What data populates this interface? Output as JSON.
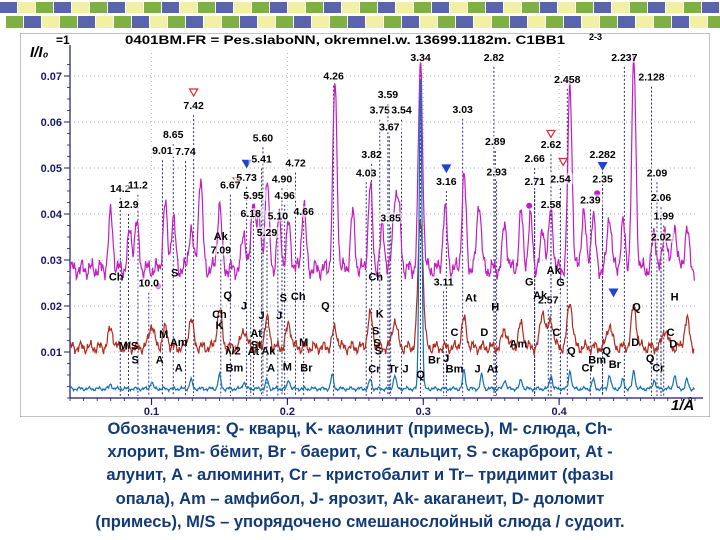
{
  "chart_data": {
    "type": "line",
    "title": "0401BM.FR = Pes.slaboNN, okremnel.w. 13699.1182m. C1BB1",
    "title_prefix": "=1",
    "superscript": "2-3",
    "ylabel": "I/I₀",
    "xlabel": "1/Å",
    "xlim": [
      0.04,
      0.5
    ],
    "ylim": [
      0,
      0.075
    ],
    "x_ticks": [
      {
        "v": 0.1,
        "label": "0.1"
      },
      {
        "v": 0.2,
        "label": "0.2"
      },
      {
        "v": 0.3,
        "label": "0.3"
      },
      {
        "v": 0.4,
        "label": "0.4"
      }
    ],
    "y_ticks": [
      {
        "v": 0.01,
        "label": "0.01"
      },
      {
        "v": 0.02,
        "label": "0.02"
      },
      {
        "v": 0.03,
        "label": "0.03"
      },
      {
        "v": 0.04,
        "label": "0.04"
      },
      {
        "v": 0.05,
        "label": "0.05"
      },
      {
        "v": 0.06,
        "label": "0.06"
      },
      {
        "v": 0.07,
        "label": "0.07"
      }
    ],
    "series": [
      {
        "color": "#c020c0",
        "offset": 0.028,
        "peaks": [
          [
            0.07,
            0.012
          ],
          [
            0.084,
            0.008
          ],
          [
            0.089,
            0.01
          ],
          [
            0.11,
            0.014
          ],
          [
            0.116,
            0.011
          ],
          [
            0.129,
            0.009
          ],
          [
            0.136,
            0.02
          ],
          [
            0.15,
            0.014
          ],
          [
            0.168,
            0.008
          ],
          [
            0.175,
            0.015
          ],
          [
            0.179,
            0.01
          ],
          [
            0.185,
            0.019
          ],
          [
            0.194,
            0.011
          ],
          [
            0.201,
            0.01
          ],
          [
            0.212,
            0.014
          ],
          [
            0.235,
            0.04
          ],
          [
            0.248,
            0.012
          ],
          [
            0.261,
            0.018
          ],
          [
            0.27,
            0.009
          ],
          [
            0.279,
            0.014
          ],
          [
            0.282,
            0.012
          ],
          [
            0.298,
            0.045
          ],
          [
            0.316,
            0.013
          ],
          [
            0.33,
            0.02
          ],
          [
            0.341,
            0.015
          ],
          [
            0.36,
            0.01
          ],
          [
            0.372,
            0.012
          ],
          [
            0.379,
            0.011
          ],
          [
            0.388,
            0.009
          ],
          [
            0.394,
            0.013
          ],
          [
            0.408,
            0.04
          ],
          [
            0.418,
            0.013
          ],
          [
            0.425,
            0.012
          ],
          [
            0.437,
            0.012
          ],
          [
            0.447,
            0.01
          ],
          [
            0.455,
            0.045
          ],
          [
            0.47,
            0.008
          ],
          [
            0.478,
            0.009
          ],
          [
            0.485,
            0.01
          ],
          [
            0.494,
            0.009
          ]
        ]
      },
      {
        "color": "#b02c20",
        "offset": 0.011,
        "peaks": [
          [
            0.07,
            0.004
          ],
          [
            0.1,
            0.005
          ],
          [
            0.11,
            0.004
          ],
          [
            0.129,
            0.006
          ],
          [
            0.15,
            0.008
          ],
          [
            0.168,
            0.004
          ],
          [
            0.185,
            0.006
          ],
          [
            0.201,
            0.005
          ],
          [
            0.235,
            0.004
          ],
          [
            0.261,
            0.007
          ],
          [
            0.279,
            0.006
          ],
          [
            0.298,
            0.028
          ],
          [
            0.33,
            0.006
          ],
          [
            0.36,
            0.004
          ],
          [
            0.372,
            0.005
          ],
          [
            0.388,
            0.008
          ],
          [
            0.394,
            0.006
          ],
          [
            0.408,
            0.01
          ],
          [
            0.437,
            0.005
          ],
          [
            0.455,
            0.009
          ],
          [
            0.478,
            0.004
          ],
          [
            0.494,
            0.006
          ]
        ]
      },
      {
        "color": "#1470b8",
        "offset": 0.002,
        "peaks": [
          [
            0.07,
            0.001
          ],
          [
            0.1,
            0.0015
          ],
          [
            0.129,
            0.002
          ],
          [
            0.15,
            0.003
          ],
          [
            0.168,
            0.0015
          ],
          [
            0.185,
            0.002
          ],
          [
            0.201,
            0.002
          ],
          [
            0.233,
            0.003
          ],
          [
            0.261,
            0.002
          ],
          [
            0.279,
            0.003
          ],
          [
            0.298,
            0.068
          ],
          [
            0.33,
            0.004
          ],
          [
            0.343,
            0.003
          ],
          [
            0.36,
            0.002
          ],
          [
            0.372,
            0.002
          ],
          [
            0.394,
            0.003
          ],
          [
            0.408,
            0.004
          ],
          [
            0.425,
            0.002
          ],
          [
            0.437,
            0.003
          ],
          [
            0.447,
            0.002
          ],
          [
            0.455,
            0.004
          ],
          [
            0.47,
            0.002
          ],
          [
            0.485,
            0.003
          ],
          [
            0.494,
            0.002
          ]
        ]
      }
    ],
    "dspacing_labels": [
      {
        "x": 0.298,
        "y": 0.0733,
        "t": "3.34"
      },
      {
        "x": 0.352,
        "y": 0.0733,
        "t": "2.82"
      },
      {
        "x": 0.448,
        "y": 0.0733,
        "t": "2.237"
      },
      {
        "x": 0.234,
        "y": 0.0692,
        "t": "4.26"
      },
      {
        "x": 0.406,
        "y": 0.0685,
        "t": "2.458"
      },
      {
        "x": 0.468,
        "y": 0.069,
        "t": "2.128"
      },
      {
        "x": 0.274,
        "y": 0.0652,
        "t": "3.59"
      },
      {
        "x": 0.131,
        "y": 0.0628,
        "t": "7.42"
      },
      {
        "x": 0.268,
        "y": 0.0618,
        "t": "3.75"
      },
      {
        "x": 0.284,
        "y": 0.0618,
        "t": "3.54"
      },
      {
        "x": 0.329,
        "y": 0.062,
        "t": "3.03"
      },
      {
        "x": 0.275,
        "y": 0.0582,
        "t": "3.67"
      },
      {
        "x": 0.116,
        "y": 0.0565,
        "t": "8.65"
      },
      {
        "x": 0.182,
        "y": 0.0558,
        "t": "5.60"
      },
      {
        "x": 0.353,
        "y": 0.055,
        "t": "2.89"
      },
      {
        "x": 0.394,
        "y": 0.0543,
        "t": "2.62"
      },
      {
        "x": 0.108,
        "y": 0.053,
        "t": "9.01"
      },
      {
        "x": 0.125,
        "y": 0.0528,
        "t": "7.74"
      },
      {
        "x": 0.262,
        "y": 0.0522,
        "t": "3.82"
      },
      {
        "x": 0.432,
        "y": 0.0522,
        "t": "2.282"
      },
      {
        "x": 0.181,
        "y": 0.0512,
        "t": "5.41"
      },
      {
        "x": 0.206,
        "y": 0.0503,
        "t": "4.72"
      },
      {
        "x": 0.382,
        "y": 0.0513,
        "t": "2.66"
      },
      {
        "x": 0.17,
        "y": 0.0472,
        "t": "5.73"
      },
      {
        "x": 0.196,
        "y": 0.0469,
        "t": "4.90"
      },
      {
        "x": 0.258,
        "y": 0.0482,
        "t": "4.03"
      },
      {
        "x": 0.354,
        "y": 0.0484,
        "t": "2.93"
      },
      {
        "x": 0.317,
        "y": 0.0463,
        "t": "3.16"
      },
      {
        "x": 0.382,
        "y": 0.0463,
        "t": "2.71"
      },
      {
        "x": 0.401,
        "y": 0.0469,
        "t": "2.54"
      },
      {
        "x": 0.432,
        "y": 0.0468,
        "t": "2.35"
      },
      {
        "x": 0.472,
        "y": 0.0482,
        "t": "2.09"
      },
      {
        "x": 0.077,
        "y": 0.0448,
        "t": "14.2"
      },
      {
        "x": 0.09,
        "y": 0.0455,
        "t": "11.2"
      },
      {
        "x": 0.158,
        "y": 0.0455,
        "t": "6.67"
      },
      {
        "x": 0.175,
        "y": 0.0433,
        "t": "5.95"
      },
      {
        "x": 0.198,
        "y": 0.0433,
        "t": "4.96"
      },
      {
        "x": 0.394,
        "y": 0.0413,
        "t": "2.58"
      },
      {
        "x": 0.423,
        "y": 0.0423,
        "t": "2.39"
      },
      {
        "x": 0.475,
        "y": 0.0428,
        "t": "2.06"
      },
      {
        "x": 0.083,
        "y": 0.0413,
        "t": "12.9"
      },
      {
        "x": 0.173,
        "y": 0.0393,
        "t": "6.18"
      },
      {
        "x": 0.193,
        "y": 0.0388,
        "t": "5.10"
      },
      {
        "x": 0.212,
        "y": 0.0398,
        "t": "4.66"
      },
      {
        "x": 0.276,
        "y": 0.0384,
        "t": "3.85"
      },
      {
        "x": 0.477,
        "y": 0.0388,
        "t": "1.99"
      },
      {
        "x": 0.185,
        "y": 0.0352,
        "t": "5.29"
      },
      {
        "x": 0.475,
        "y": 0.0342,
        "t": "2.02"
      },
      {
        "x": 0.151,
        "y": 0.0314,
        "t": "7.09"
      },
      {
        "x": 0.098,
        "y": 0.0242,
        "t": "10.0"
      },
      {
        "x": 0.315,
        "y": 0.0245,
        "t": "3.11"
      },
      {
        "x": 0.392,
        "y": 0.0205,
        "t": "2.57"
      }
    ],
    "phase_labels": [
      {
        "x": 0.151,
        "y": 0.0344,
        "t": "Ak"
      },
      {
        "x": 0.074,
        "y": 0.0255,
        "t": "Ch"
      },
      {
        "x": 0.117,
        "y": 0.0264,
        "t": "S"
      },
      {
        "x": 0.265,
        "y": 0.0255,
        "t": "Ch"
      },
      {
        "x": 0.396,
        "y": 0.027,
        "t": "Ak"
      },
      {
        "x": 0.378,
        "y": 0.0245,
        "t": "G"
      },
      {
        "x": 0.401,
        "y": 0.0244,
        "t": "G"
      },
      {
        "x": 0.156,
        "y": 0.0215,
        "t": "Q"
      },
      {
        "x": 0.197,
        "y": 0.021,
        "t": "S"
      },
      {
        "x": 0.208,
        "y": 0.0213,
        "t": "Ch"
      },
      {
        "x": 0.335,
        "y": 0.021,
        "t": "At"
      },
      {
        "x": 0.386,
        "y": 0.0215,
        "t": "Ak"
      },
      {
        "x": 0.485,
        "y": 0.0212,
        "t": "H"
      },
      {
        "x": 0.168,
        "y": 0.0192,
        "t": "J"
      },
      {
        "x": 0.228,
        "y": 0.0192,
        "t": "Q"
      },
      {
        "x": 0.353,
        "y": 0.019,
        "t": "H"
      },
      {
        "x": 0.457,
        "y": 0.019,
        "t": "Q"
      },
      {
        "x": 0.15,
        "y": 0.0174,
        "t": "Ch"
      },
      {
        "x": 0.181,
        "y": 0.0172,
        "t": "J"
      },
      {
        "x": 0.194,
        "y": 0.0172,
        "t": "J"
      },
      {
        "x": 0.268,
        "y": 0.0175,
        "t": "K"
      },
      {
        "x": 0.15,
        "y": 0.015,
        "t": "K"
      },
      {
        "x": 0.323,
        "y": 0.0135,
        "t": "C"
      },
      {
        "x": 0.345,
        "y": 0.0135,
        "t": "D"
      },
      {
        "x": 0.109,
        "y": 0.013,
        "t": "M"
      },
      {
        "x": 0.177,
        "y": 0.0133,
        "t": "At"
      },
      {
        "x": 0.265,
        "y": 0.0138,
        "t": "S"
      },
      {
        "x": 0.398,
        "y": 0.0135,
        "t": "C"
      },
      {
        "x": 0.482,
        "y": 0.0135,
        "t": "C"
      },
      {
        "x": 0.083,
        "y": 0.0105,
        "t": "M/S"
      },
      {
        "x": 0.12,
        "y": 0.0113,
        "t": "Am"
      },
      {
        "x": 0.177,
        "y": 0.0108,
        "t": "St"
      },
      {
        "x": 0.212,
        "y": 0.0113,
        "t": "M"
      },
      {
        "x": 0.266,
        "y": 0.0112,
        "t": "S"
      },
      {
        "x": 0.37,
        "y": 0.011,
        "t": "Am"
      },
      {
        "x": 0.456,
        "y": 0.0113,
        "t": "D"
      },
      {
        "x": 0.484,
        "y": 0.011,
        "t": "D"
      },
      {
        "x": 0.16,
        "y": 0.0095,
        "t": "λ/2"
      },
      {
        "x": 0.186,
        "y": 0.0095,
        "t": "Ak"
      },
      {
        "x": 0.267,
        "y": 0.0095,
        "t": "S"
      },
      {
        "x": 0.409,
        "y": 0.0095,
        "t": "Q"
      },
      {
        "x": 0.435,
        "y": 0.0095,
        "t": "Q"
      },
      {
        "x": 0.175,
        "y": 0.0093,
        "t": "At"
      },
      {
        "x": 0.088,
        "y": 0.0075,
        "t": "S"
      },
      {
        "x": 0.106,
        "y": 0.0075,
        "t": "A"
      },
      {
        "x": 0.308,
        "y": 0.0075,
        "t": "Br"
      },
      {
        "x": 0.317,
        "y": 0.0078,
        "t": "J"
      },
      {
        "x": 0.428,
        "y": 0.0075,
        "t": "Bm"
      },
      {
        "x": 0.467,
        "y": 0.0078,
        "t": "Q"
      },
      {
        "x": 0.12,
        "y": 0.0058,
        "t": "A"
      },
      {
        "x": 0.161,
        "y": 0.0058,
        "t": "Bm"
      },
      {
        "x": 0.188,
        "y": 0.0058,
        "t": "A"
      },
      {
        "x": 0.2,
        "y": 0.006,
        "t": "M"
      },
      {
        "x": 0.214,
        "y": 0.0058,
        "t": "Br"
      },
      {
        "x": 0.264,
        "y": 0.0055,
        "t": "Cr"
      },
      {
        "x": 0.278,
        "y": 0.0055,
        "t": "Tr"
      },
      {
        "x": 0.287,
        "y": 0.0055,
        "t": "J"
      },
      {
        "x": 0.323,
        "y": 0.0055,
        "t": "Bm"
      },
      {
        "x": 0.34,
        "y": 0.0055,
        "t": "J"
      },
      {
        "x": 0.351,
        "y": 0.0055,
        "t": "At"
      },
      {
        "x": 0.421,
        "y": 0.0058,
        "t": "Cr"
      },
      {
        "x": 0.441,
        "y": 0.0065,
        "t": "Br"
      },
      {
        "x": 0.473,
        "y": 0.0058,
        "t": "Cr"
      },
      {
        "x": 0.298,
        "y": 0.0043,
        "t": "Q"
      }
    ],
    "markers": [
      {
        "x": 0.131,
        "y": 0.0663,
        "k": "tri-down-outline"
      },
      {
        "x": 0.394,
        "y": 0.0573,
        "k": "tri-down-outline"
      },
      {
        "x": 0.403,
        "y": 0.0512,
        "k": "tri-down-outline"
      },
      {
        "x": 0.17,
        "y": 0.0508,
        "k": "tri-down-blue"
      },
      {
        "x": 0.317,
        "y": 0.0498,
        "k": "tri-down-blue"
      },
      {
        "x": 0.432,
        "y": 0.0503,
        "k": "tri-down-blue"
      },
      {
        "x": 0.163,
        "y": 0.047,
        "k": "tri-down-outline"
      },
      {
        "x": 0.44,
        "y": 0.0228,
        "k": "tri-down-blue"
      },
      {
        "x": 0.105,
        "y": 0.0243,
        "k": "dot"
      },
      {
        "x": 0.378,
        "y": 0.0418,
        "k": "dot"
      },
      {
        "x": 0.428,
        "y": 0.0445,
        "k": "dot"
      }
    ]
  },
  "legend_text": [
    "Обозначения: Q- кварц, K- каолинит (примесь), M- слюда, Ch-",
    "хлорит, Bm- бёмит, Br - баерит, C - кальцит, S - скарброит, At -",
    "алунит, A - алюминит, Cr – кристобалит и Tr– тридимит (фазы",
    "опала), Am – амфибол, J- ярозит, Ak- акаганеит, D- доломит",
    "(примесь), M/S – упорядочено смешанослойный слюда / судоит."
  ],
  "colors": {
    "decor_blue": "#5a64ac",
    "decor_yellow": "#f2f0a4",
    "decor_green": "#7fb044",
    "caption": "#123a78",
    "axis": "#1a1a6e"
  }
}
